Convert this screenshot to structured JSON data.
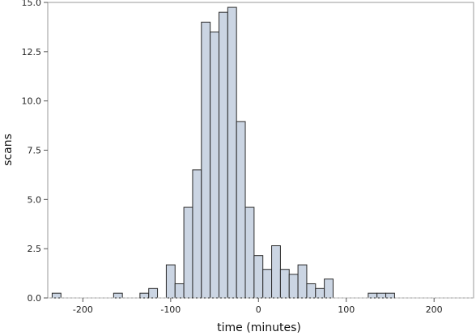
{
  "chart_data": {
    "type": "bar",
    "subtype": "histogram",
    "title": "",
    "xlabel": "time (minutes)",
    "ylabel": "scans",
    "xlim": [
      -240,
      245
    ],
    "ylim": [
      0,
      15.0
    ],
    "grid": false,
    "bin_width": 10,
    "bar_fill": "#cbd5e3",
    "bar_stroke": "#2a2a2a",
    "x_ticks": [
      {
        "value": -200,
        "label": "-200"
      },
      {
        "value": -100,
        "label": "-100"
      },
      {
        "value": 0,
        "label": "0"
      },
      {
        "value": 100,
        "label": "100"
      },
      {
        "value": 200,
        "label": "200"
      }
    ],
    "y_ticks": [
      {
        "value": 0,
        "label": "0.0"
      },
      {
        "value": 2.5,
        "label": "2.5"
      },
      {
        "value": 5.0,
        "label": "5.0"
      },
      {
        "value": 7.5,
        "label": "7.5"
      },
      {
        "value": 10.0,
        "label": "10.0"
      },
      {
        "value": 12.5,
        "label": "12.5"
      },
      {
        "value": 15.0,
        "label": "15.0"
      }
    ],
    "bins": [
      {
        "x0": -235,
        "x1": -225,
        "value": 0.24
      },
      {
        "x0": -165,
        "x1": -155,
        "value": 0.24
      },
      {
        "x0": -135,
        "x1": -125,
        "value": 0.24
      },
      {
        "x0": -125,
        "x1": -115,
        "value": 0.48
      },
      {
        "x0": -105,
        "x1": -95,
        "value": 1.68
      },
      {
        "x0": -95,
        "x1": -85,
        "value": 0.72
      },
      {
        "x0": -85,
        "x1": -75,
        "value": 4.6
      },
      {
        "x0": -75,
        "x1": -65,
        "value": 6.5
      },
      {
        "x0": -65,
        "x1": -55,
        "value": 14.0
      },
      {
        "x0": -55,
        "x1": -45,
        "value": 13.5
      },
      {
        "x0": -45,
        "x1": -35,
        "value": 14.5
      },
      {
        "x0": -35,
        "x1": -25,
        "value": 14.75
      },
      {
        "x0": -25,
        "x1": -15,
        "value": 8.95
      },
      {
        "x0": -15,
        "x1": -5,
        "value": 4.6
      },
      {
        "x0": -5,
        "x1": 5,
        "value": 2.15
      },
      {
        "x0": 5,
        "x1": 15,
        "value": 1.45
      },
      {
        "x0": 15,
        "x1": 25,
        "value": 2.65
      },
      {
        "x0": 25,
        "x1": 35,
        "value": 1.45
      },
      {
        "x0": 35,
        "x1": 45,
        "value": 1.2
      },
      {
        "x0": 45,
        "x1": 55,
        "value": 1.68
      },
      {
        "x0": 55,
        "x1": 65,
        "value": 0.72
      },
      {
        "x0": 65,
        "x1": 75,
        "value": 0.48
      },
      {
        "x0": 75,
        "x1": 85,
        "value": 0.96
      },
      {
        "x0": 125,
        "x1": 135,
        "value": 0.24
      },
      {
        "x0": 135,
        "x1": 145,
        "value": 0.24
      },
      {
        "x0": 145,
        "x1": 155,
        "value": 0.24
      }
    ]
  }
}
